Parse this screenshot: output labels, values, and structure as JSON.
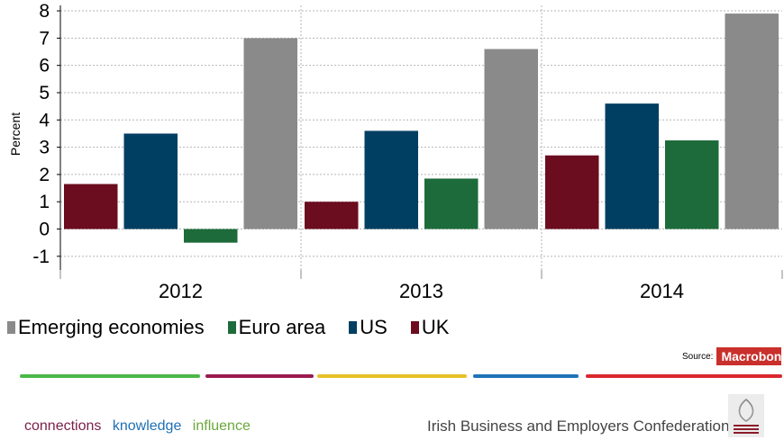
{
  "chart_data": {
    "type": "bar",
    "ylabel": "Percent",
    "ylim": [
      -1.5,
      8.2
    ],
    "yticks": [
      -1,
      0,
      1,
      2,
      3,
      4,
      5,
      6,
      7,
      8
    ],
    "categories": [
      "2012",
      "2013",
      "2014"
    ],
    "series": [
      {
        "name": "UK",
        "color": "#6b0c1f",
        "values": [
          1.65,
          1.0,
          2.7
        ]
      },
      {
        "name": "US",
        "color": "#003f62",
        "values": [
          3.5,
          3.6,
          4.6
        ]
      },
      {
        "name": "Euro area",
        "color": "#1d6b3a",
        "values": [
          -0.5,
          1.85,
          3.25
        ]
      },
      {
        "name": "Emerging economies",
        "color": "#8a8a8a",
        "values": [
          7.0,
          6.6,
          7.9
        ]
      }
    ],
    "grid": true,
    "legend_order": [
      "Emerging economies",
      "Euro area",
      "US",
      "UK"
    ]
  },
  "source": {
    "label": "Source:",
    "brand": "Macrobond"
  },
  "footer": {
    "tagline": [
      {
        "text": "connections",
        "color": "#7a1e4a"
      },
      {
        "text": "knowledge",
        "color": "#1f6fb2"
      },
      {
        "text": "influence",
        "color": "#6aa83a"
      }
    ],
    "org": "Irish Business and Employers Confederation"
  },
  "stripe_colors": [
    "#4cb848",
    "#9a1b4e",
    "#e6c228",
    "#1f73b7",
    "#d9282f"
  ]
}
